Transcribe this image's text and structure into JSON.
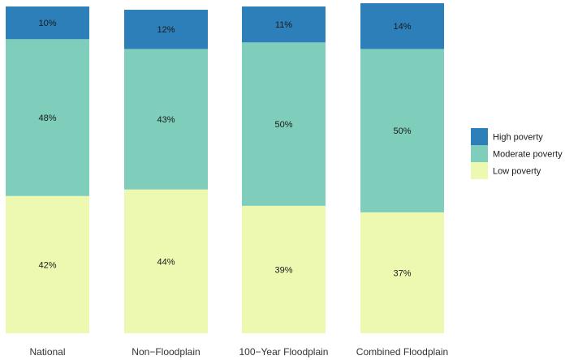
{
  "chart_data": {
    "type": "bar",
    "stacked": true,
    "orientation": "vertical",
    "title": "",
    "xlabel": "",
    "ylabel": "",
    "ylim": [
      0,
      100
    ],
    "grid": false,
    "legend_position": "right",
    "categories": [
      "National",
      "Non−Floodplain",
      "100−Year Floodplain",
      "Combined Floodplain"
    ],
    "series": [
      {
        "name": "Low poverty",
        "color": "#edf8b1",
        "values": [
          42,
          44,
          39,
          37
        ],
        "labels": [
          "42%",
          "44%",
          "39%",
          "37%"
        ]
      },
      {
        "name": "Moderate poverty",
        "color": "#7fcdbb",
        "values": [
          48,
          43,
          50,
          50
        ],
        "labels": [
          "48%",
          "43%",
          "50%",
          "50%"
        ]
      },
      {
        "name": "High poverty",
        "color": "#2c7fb8",
        "values": [
          10,
          12,
          11,
          14
        ],
        "labels": [
          "10%",
          "12%",
          "11%",
          "14%"
        ]
      }
    ],
    "legend_order": [
      "High poverty",
      "Moderate poverty",
      "Low poverty"
    ]
  }
}
